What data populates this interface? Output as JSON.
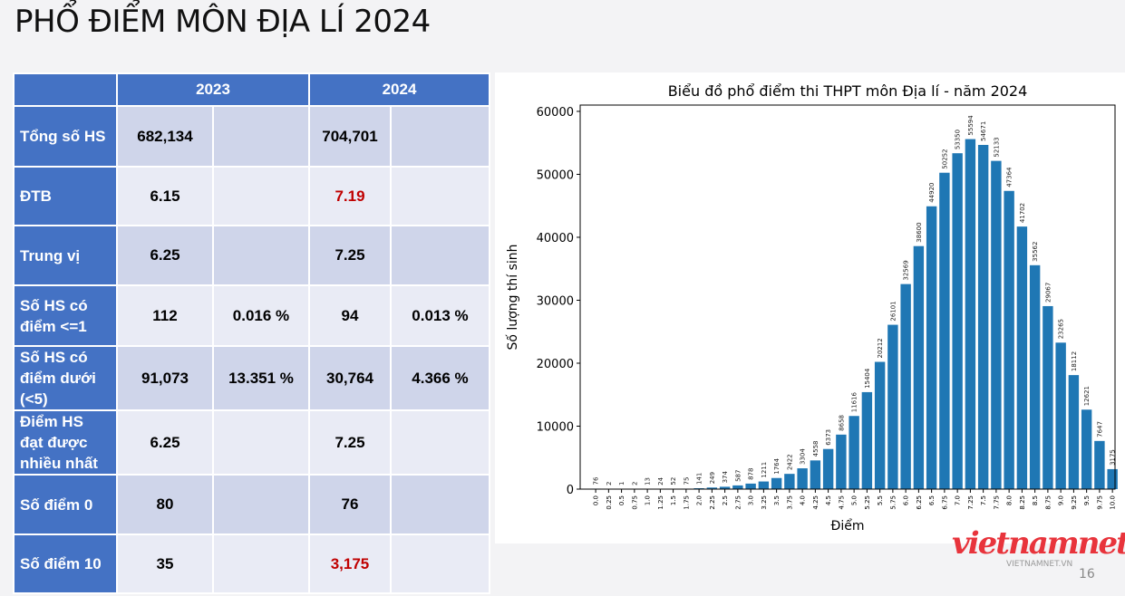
{
  "title": "PHỔ ĐIỂM MÔN ĐỊA LÍ 2024",
  "table": {
    "headers": [
      "",
      "2023",
      "2024"
    ],
    "rows": [
      {
        "label": "Tổng số HS",
        "v2023": "682,134",
        "p2023": "",
        "v2024": "704,701",
        "p2024": "",
        "red": false
      },
      {
        "label": "ĐTB",
        "v2023": "6.15",
        "p2023": "",
        "v2024": "7.19",
        "p2024": "",
        "red": true
      },
      {
        "label": "Trung vị",
        "v2023": "6.25",
        "p2023": "",
        "v2024": "7.25",
        "p2024": "",
        "red": false
      },
      {
        "label": "Số HS có điểm <=1",
        "v2023": "112",
        "p2023": "0.016 %",
        "v2024": "94",
        "p2024": "0.013 %",
        "red": false
      },
      {
        "label": "Số HS có điểm dưới (<5)",
        "v2023": "91,073",
        "p2023": "13.351 %",
        "v2024": "30,764",
        "p2024": "4.366 %",
        "red": false
      },
      {
        "label": "Điểm HS đạt được nhiều nhất",
        "v2023": "6.25",
        "p2023": "",
        "v2024": "7.25",
        "p2024": "",
        "red": false
      },
      {
        "label": "Số điểm 0",
        "v2023": "80",
        "p2023": "",
        "v2024": "76",
        "p2024": "",
        "red": false
      },
      {
        "label": "Số điểm 10",
        "v2023": "35",
        "p2023": "",
        "v2024": "3,175",
        "p2024": "",
        "red": true
      }
    ]
  },
  "chart_data": {
    "type": "bar",
    "title": "Biểu đồ phổ điểm thi THPT môn Địa lí - năm 2024",
    "xlabel": "Điểm",
    "ylabel": "Số lượng thí sinh",
    "ylim": [
      0,
      61000
    ],
    "yticks": [
      0,
      10000,
      20000,
      30000,
      40000,
      50000,
      60000
    ],
    "color": "#1f77b4",
    "categories": [
      "0.0",
      "0.25",
      "0.5",
      "0.75",
      "1.0",
      "1.25",
      "1.5",
      "1.75",
      "2.0",
      "2.25",
      "2.5",
      "2.75",
      "3.0",
      "3.25",
      "3.5",
      "3.75",
      "4.0",
      "4.25",
      "4.5",
      "4.75",
      "5.0",
      "5.25",
      "5.5",
      "5.75",
      "6.0",
      "6.25",
      "6.5",
      "6.75",
      "7.0",
      "7.25",
      "7.5",
      "7.75",
      "8.0",
      "8.25",
      "8.5",
      "8.75",
      "9.0",
      "9.25",
      "9.5",
      "9.75",
      "10.0"
    ],
    "values": [
      76,
      2,
      1,
      2,
      13,
      24,
      52,
      75,
      141,
      249,
      374,
      587,
      878,
      1211,
      1764,
      2422,
      3304,
      4558,
      6373,
      8658,
      11616,
      15404,
      20212,
      26101,
      32569,
      38600,
      44920,
      50252,
      53350,
      55594,
      54671,
      52133,
      47364,
      41702,
      35562,
      29067,
      23265,
      18112,
      12621,
      7647,
      3175
    ]
  },
  "logo": {
    "brand": "vietnamnet",
    "domain": "VIETNAMNET.VN"
  },
  "page_number": "16"
}
